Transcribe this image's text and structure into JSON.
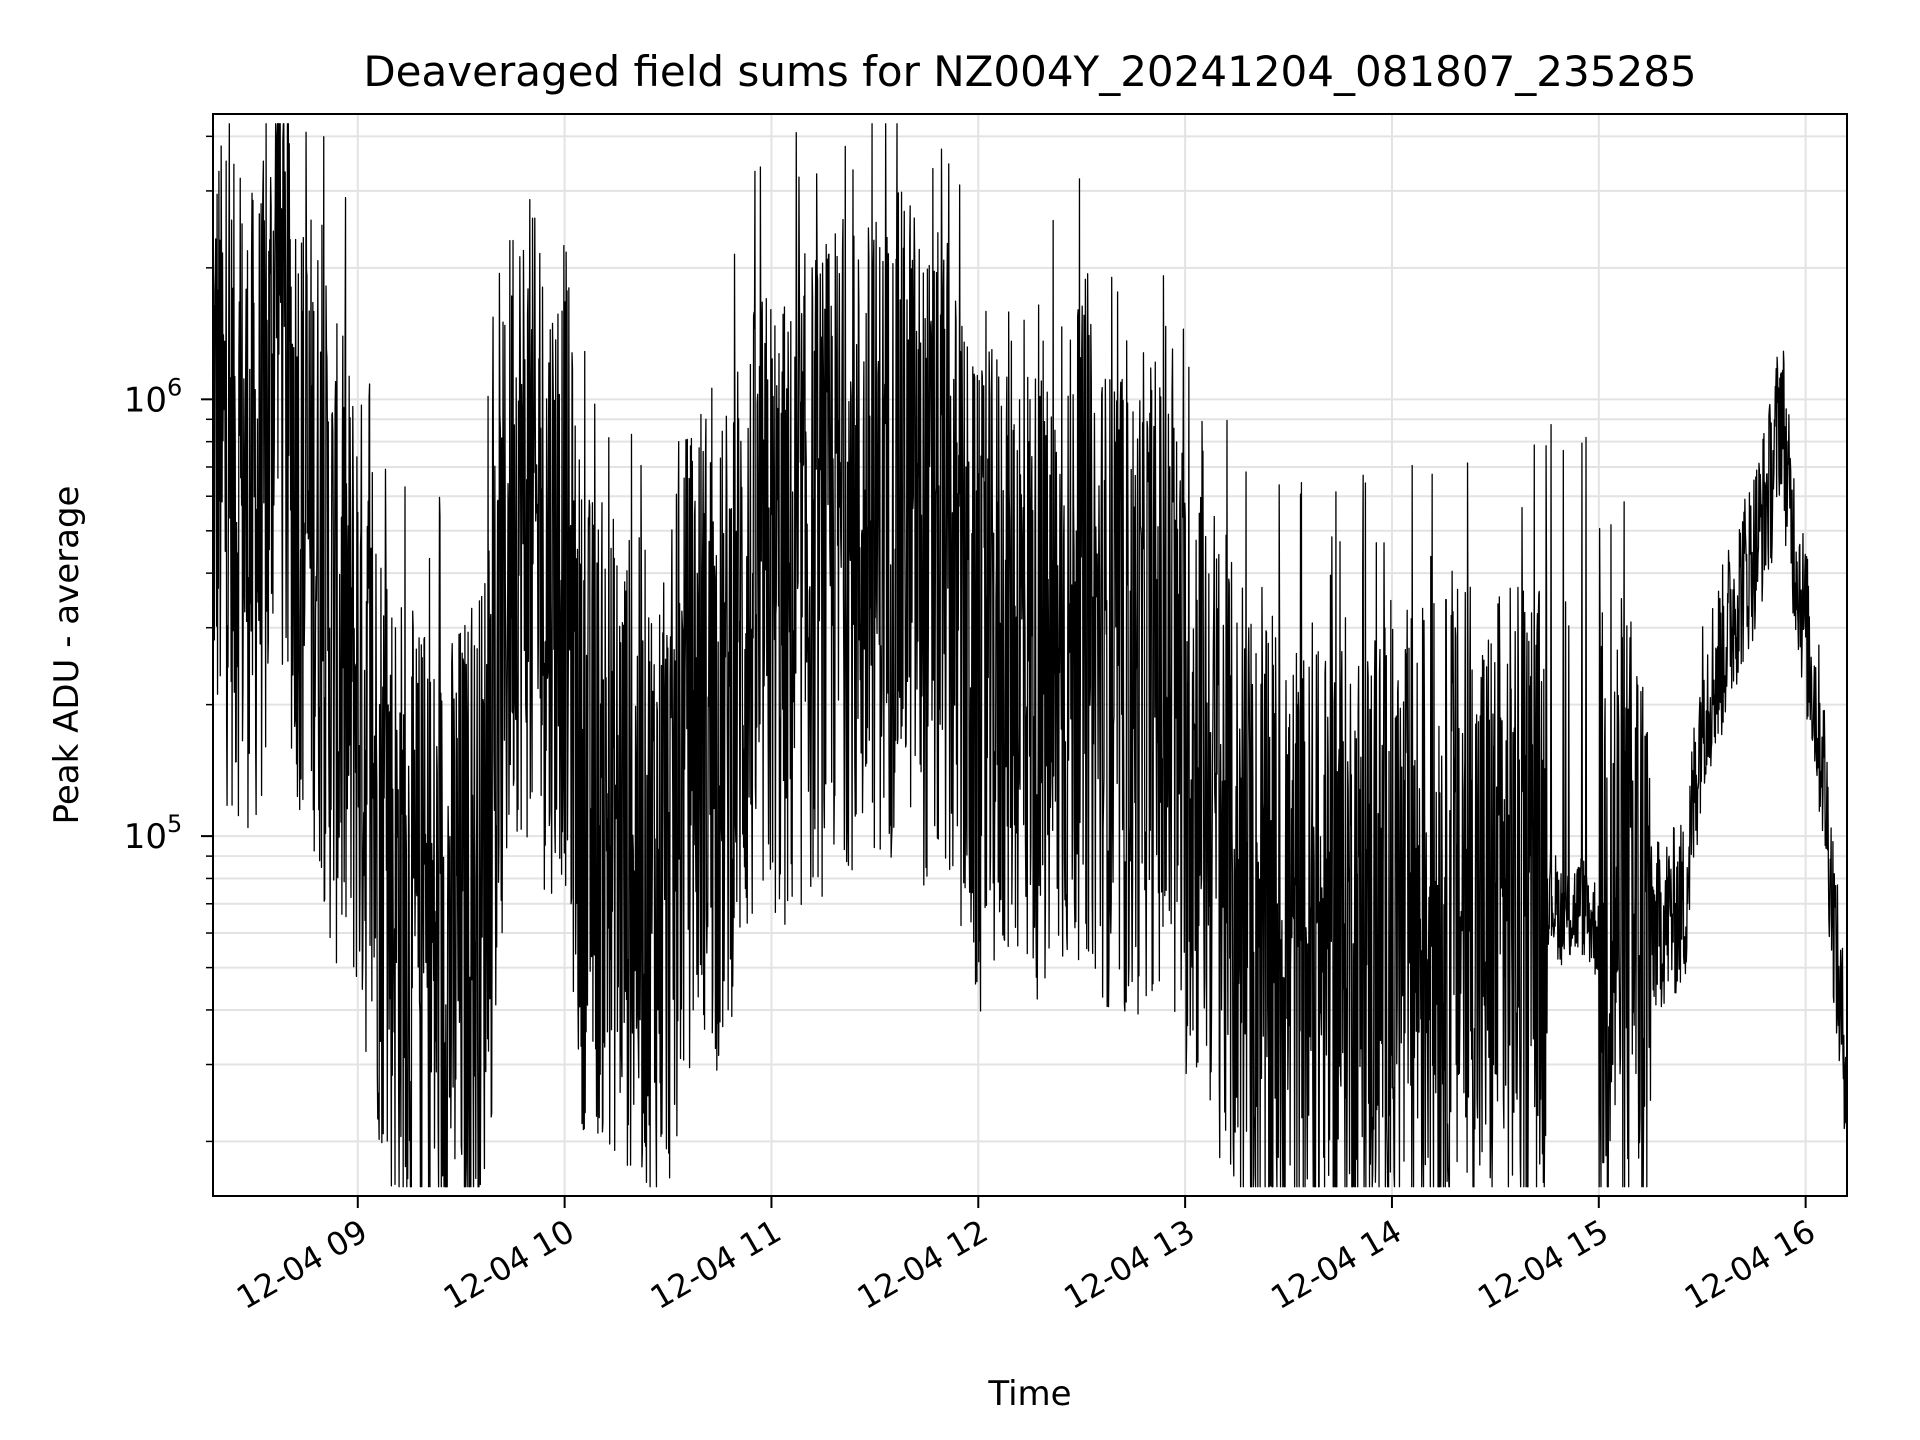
{
  "chart_data": {
    "type": "line",
    "title": "Deaveraged field sums for NZ004Y_20241204_081807_235285",
    "xlabel": "Time",
    "ylabel": "Peak ADU - average",
    "yscale": "log",
    "ylim": [
      15000,
      4500000
    ],
    "xlim": [
      "12-04 08:18",
      "12-04 16:12"
    ],
    "grid": true,
    "color": "#000000",
    "x_ticks": [
      "12-04 09",
      "12-04 10",
      "12-04 11",
      "12-04 12",
      "12-04 13",
      "12-04 14",
      "12-04 15",
      "12-04 16"
    ],
    "y_ticks": [
      {
        "value": 100000,
        "base": "10",
        "exp": "5"
      },
      {
        "value": 1000000,
        "base": "10",
        "exp": "6"
      }
    ],
    "series": [
      {
        "note_on_density": "dense trace; envelope samples",
        "x": [
          "08:18",
          "08:22",
          "08:26",
          "08:30",
          "08:34",
          "08:37",
          "08:38",
          "08:40",
          "08:44",
          "08:48",
          "08:52",
          "08:55",
          "09:00",
          "09:05",
          "09:10",
          "09:15",
          "09:20",
          "09:25",
          "09:30",
          "09:35",
          "09:40",
          "09:45",
          "09:50",
          "09:55",
          "10:00",
          "10:05",
          "10:10",
          "10:15",
          "10:20",
          "10:25",
          "10:30",
          "10:35",
          "10:40",
          "10:45",
          "10:50",
          "10:55",
          "11:00",
          "11:05",
          "11:10",
          "11:15",
          "11:20",
          "11:25",
          "11:30",
          "11:35",
          "11:40",
          "11:45",
          "11:50",
          "11:55",
          "12:00",
          "12:05",
          "12:10",
          "12:15",
          "12:20",
          "12:25",
          "12:30",
          "12:35",
          "12:40",
          "12:45",
          "12:50",
          "12:55",
          "13:00",
          "13:05",
          "13:10",
          "13:15",
          "13:20",
          "13:25",
          "13:30",
          "13:35",
          "13:40",
          "13:45",
          "13:50",
          "13:55",
          "14:00",
          "14:05",
          "14:10",
          "14:15",
          "14:20",
          "14:25",
          "14:30",
          "14:35",
          "14:40",
          "14:45",
          "14:50",
          "14:55",
          "15:00",
          "15:05",
          "15:10",
          "15:15",
          "15:20",
          "15:25",
          "15:30",
          "15:35",
          "15:40",
          "15:45",
          "15:50",
          "15:53",
          "15:55",
          "16:00",
          "16:05",
          "16:10",
          "16:12"
        ],
        "values": [
          900000,
          650000,
          600000,
          550000,
          700000,
          3500000,
          1200000,
          900000,
          550000,
          500000,
          300000,
          250000,
          220000,
          120000,
          80000,
          60000,
          55000,
          50000,
          60000,
          65000,
          150000,
          600000,
          500000,
          400000,
          450000,
          120000,
          110000,
          100000,
          90000,
          80000,
          80000,
          150000,
          200000,
          150000,
          250000,
          300000,
          350000,
          300000,
          400000,
          400000,
          500000,
          450000,
          500000,
          500000,
          600000,
          400000,
          450000,
          300000,
          200000,
          250000,
          300000,
          250000,
          200000,
          250000,
          300000,
          250000,
          200000,
          200000,
          250000,
          200000,
          150000,
          150000,
          100000,
          70000,
          60000,
          50000,
          55000,
          50000,
          50000,
          60000,
          55000,
          60000,
          55000,
          60000,
          65000,
          65000,
          70000,
          60000,
          65000,
          70000,
          65000,
          75000,
          65000,
          70000,
          60000,
          70000,
          60000,
          60000,
          65000,
          70000,
          200000,
          250000,
          350000,
          450000,
          650000,
          1000000,
          600000,
          300000,
          150000,
          40000,
          30000
        ]
      }
    ]
  }
}
